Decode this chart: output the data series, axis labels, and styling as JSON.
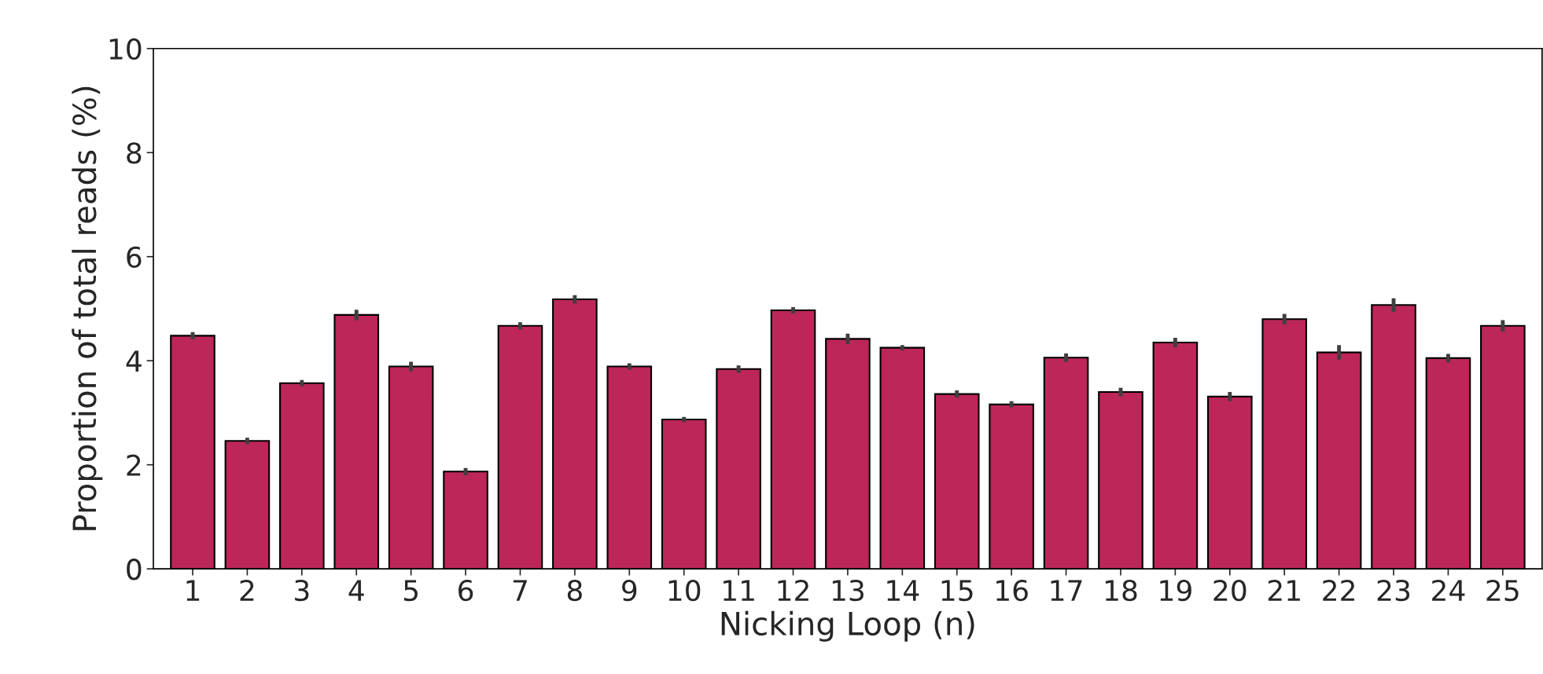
{
  "chart_data": {
    "type": "bar",
    "xlabel": "Nicking Loop (n)",
    "ylabel": "Proportion of total reads (%)",
    "categories": [
      "1",
      "2",
      "3",
      "4",
      "5",
      "6",
      "7",
      "8",
      "9",
      "10",
      "11",
      "12",
      "13",
      "14",
      "15",
      "16",
      "17",
      "18",
      "19",
      "20",
      "21",
      "22",
      "23",
      "24",
      "25"
    ],
    "values": [
      4.48,
      2.46,
      3.57,
      4.88,
      3.89,
      1.87,
      4.67,
      5.18,
      3.89,
      2.87,
      3.84,
      4.97,
      4.42,
      4.25,
      3.36,
      3.16,
      4.06,
      3.4,
      4.35,
      3.31,
      4.8,
      4.16,
      5.07,
      4.05,
      4.67
    ],
    "errors": [
      0.07,
      0.06,
      0.06,
      0.1,
      0.09,
      0.07,
      0.07,
      0.08,
      0.06,
      0.05,
      0.07,
      0.06,
      0.1,
      0.05,
      0.07,
      0.06,
      0.08,
      0.08,
      0.09,
      0.09,
      0.1,
      0.14,
      0.13,
      0.08,
      0.11
    ],
    "color": "#bc2659",
    "ylim": [
      0,
      10
    ],
    "yticks": [
      0,
      2,
      4,
      6,
      8,
      10
    ],
    "grid": false
  }
}
